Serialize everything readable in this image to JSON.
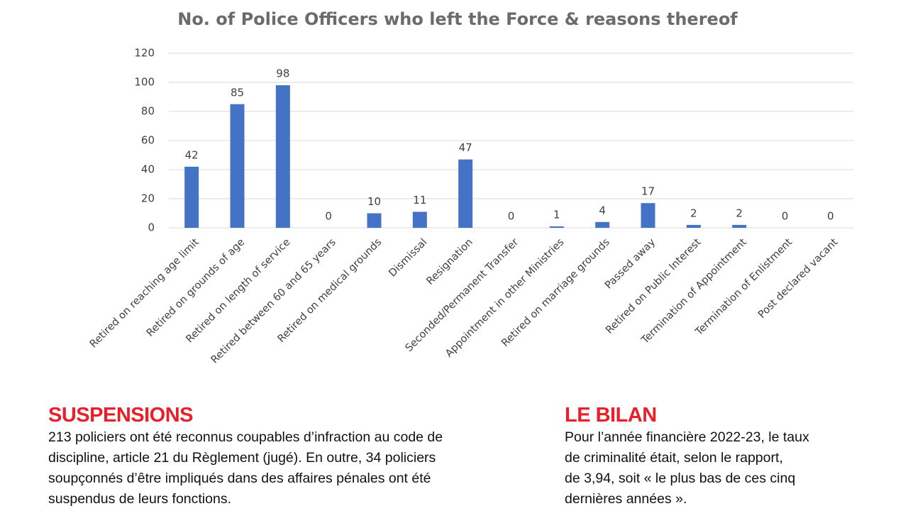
{
  "chart_data": {
    "type": "bar",
    "title": "No. of Police Officers who left the Force & reasons thereof",
    "categories": [
      "Retired on reaching age limit",
      "Retired on grounds of age",
      "Retired on length of service",
      "Retired between 60 and 65 years",
      "Retired on medical grounds",
      "Dismissal",
      "Resignation",
      "Seconded/Permanent Transfer",
      "Appointment in other Ministries",
      "Retired on marriage grounds",
      "Passed away",
      "Retired on Public Interest",
      "Termination of Appointment",
      "Termination of Enlistment",
      "Post declared vacant"
    ],
    "values": [
      42,
      85,
      98,
      0,
      10,
      11,
      47,
      0,
      1,
      4,
      17,
      2,
      2,
      0,
      0
    ],
    "color": "#4472c4",
    "ylim": [
      0,
      120
    ],
    "yticks": [
      0,
      20,
      40,
      60,
      80,
      100,
      120
    ],
    "grid": true
  },
  "sections": [
    {
      "heading": "SUSPENSIONS",
      "lines": [
        "213 policiers ont été reconnus coupables d’infraction au code de",
        "discipline, article 21 du Règlement (jugé). En outre, 34 policiers",
        "soupçonnés d’être impliqués dans des affaires pénales ont été",
        "suspendus de leurs fonctions."
      ]
    },
    {
      "heading": "LE BILAN",
      "lines": [
        "Pour l’année financière 2022-23, le taux",
        "de criminalité était, selon le rapport,",
        "de 3,94, soit « le plus bas de ces cinq",
        "dernières années »."
      ]
    }
  ]
}
